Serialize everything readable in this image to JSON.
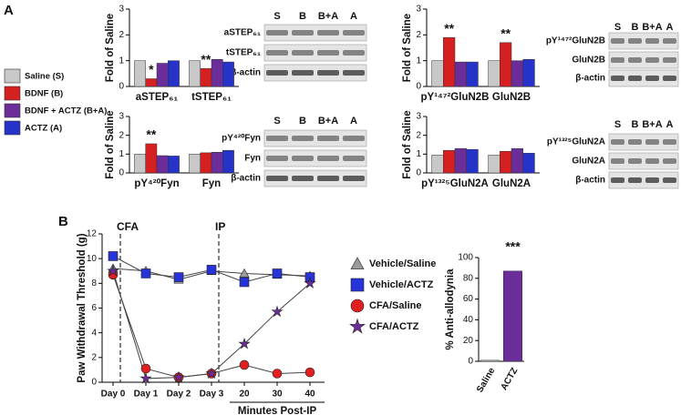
{
  "panels": [
    "A",
    "B"
  ],
  "blots": [
    {
      "lanes": [
        "S",
        "B",
        "B+A",
        "A"
      ],
      "rows": [
        "aSTEP₆₁",
        "tSTEP₆₁",
        "β-actin"
      ]
    },
    {
      "lanes": [
        "S",
        "B",
        "B+A",
        "A"
      ],
      "rows": [
        "pY⁴²⁰Fyn",
        "Fyn",
        "β-actin"
      ]
    },
    {
      "lanes": [
        "S",
        "B",
        "B+A",
        "A"
      ],
      "rows": [
        "pY¹⁴⁷²GluN2B",
        "GluN2B",
        "β-actin"
      ]
    },
    {
      "lanes": [
        "S",
        "B",
        "B+A",
        "A"
      ],
      "rows": [
        "pY¹³²⁵GluN2A",
        "GluN2A",
        "β-actin"
      ]
    }
  ],
  "chart_data": [
    {
      "type": "bar",
      "ylabel": "Fold of Saline",
      "categories": [
        "aSTEP₆₁",
        "tSTEP₆₁"
      ],
      "ylim": [
        0,
        3
      ],
      "yticks": [
        0,
        1,
        2,
        3
      ],
      "series": [
        {
          "name": "Saline (S)",
          "color": "#c8c8c8",
          "values": [
            1.0,
            1.0
          ]
        },
        {
          "name": "BDNF (B)",
          "color": "#d42020",
          "values": [
            0.3,
            0.7
          ]
        },
        {
          "name": "BDNF + ACTZ (B+A)",
          "color": "#6a2d9a",
          "values": [
            0.9,
            1.05
          ]
        },
        {
          "name": "ACTZ (A)",
          "color": "#2633c8",
          "values": [
            1.0,
            0.95
          ]
        }
      ],
      "annotations": [
        {
          "text": "*",
          "category": "aSTEP₆₁",
          "series": "BDNF (B)"
        },
        {
          "text": "**",
          "category": "tSTEP₆₁",
          "series": "BDNF (B)"
        }
      ]
    },
    {
      "type": "bar",
      "ylabel": "Fold of Saline",
      "categories": [
        "pY⁴²⁰Fyn",
        "Fyn"
      ],
      "ylim": [
        0,
        3
      ],
      "yticks": [
        0,
        1,
        2,
        3
      ],
      "series": [
        {
          "name": "Saline (S)",
          "color": "#c8c8c8",
          "values": [
            1.0,
            1.0
          ]
        },
        {
          "name": "BDNF (B)",
          "color": "#d42020",
          "values": [
            1.55,
            1.07
          ]
        },
        {
          "name": "BDNF + ACTZ (B+A)",
          "color": "#6a2d9a",
          "values": [
            0.92,
            1.1
          ]
        },
        {
          "name": "ACTZ (A)",
          "color": "#2633c8",
          "values": [
            0.9,
            1.2
          ]
        }
      ],
      "annotations": [
        {
          "text": "**",
          "category": "pY⁴²⁰Fyn",
          "series": "BDNF (B)"
        }
      ]
    },
    {
      "type": "bar",
      "ylabel": "Fold of Saline",
      "categories": [
        "pY¹⁴⁷²GluN2B",
        "GluN2B"
      ],
      "ylim": [
        0,
        3
      ],
      "yticks": [
        0,
        1,
        2,
        3
      ],
      "series": [
        {
          "name": "Saline (S)",
          "color": "#c8c8c8",
          "values": [
            1.0,
            1.0
          ]
        },
        {
          "name": "BDNF (B)",
          "color": "#d42020",
          "values": [
            1.9,
            1.7
          ]
        },
        {
          "name": "BDNF + ACTZ (B+A)",
          "color": "#6a2d9a",
          "values": [
            0.95,
            1.0
          ]
        },
        {
          "name": "ACTZ (A)",
          "color": "#2633c8",
          "values": [
            0.95,
            1.05
          ]
        }
      ],
      "annotations": [
        {
          "text": "**",
          "category": "pY¹⁴⁷²GluN2B",
          "series": "BDNF (B)"
        },
        {
          "text": "**",
          "category": "GluN2B",
          "series": "BDNF (B)"
        }
      ]
    },
    {
      "type": "bar",
      "ylabel": "Fold of Saline",
      "categories": [
        "pY¹³²⁵GluN2A",
        "GluN2A"
      ],
      "ylim": [
        0,
        3
      ],
      "yticks": [
        0,
        1,
        2,
        3
      ],
      "series": [
        {
          "name": "Saline (S)",
          "color": "#c8c8c8",
          "values": [
            0.95,
            0.95
          ]
        },
        {
          "name": "BDNF (B)",
          "color": "#d42020",
          "values": [
            1.2,
            1.15
          ]
        },
        {
          "name": "BDNF + ACTZ (B+A)",
          "color": "#6a2d9a",
          "values": [
            1.3,
            1.3
          ]
        },
        {
          "name": "ACTZ (A)",
          "color": "#2633c8",
          "values": [
            1.25,
            1.05
          ]
        }
      ],
      "annotations": []
    },
    {
      "type": "line",
      "ylabel": "Paw Withdrawal Threshold (g)",
      "xlabel": "Minutes Post-IP",
      "categories": [
        "Day 0",
        "Day 1",
        "Day 2",
        "Day 3",
        "20",
        "30",
        "40"
      ],
      "ylim": [
        0,
        12
      ],
      "yticks": [
        0,
        2,
        4,
        6,
        8,
        10,
        12
      ],
      "series": [
        {
          "name": "Vehicle/Saline",
          "color": "#9a9a9a",
          "marker": "triangle",
          "values": [
            9.2,
            9.0,
            8.3,
            9.0,
            8.8,
            8.7,
            8.6
          ]
        },
        {
          "name": "Vehicle/ACTZ",
          "color": "#2633d8",
          "marker": "square",
          "values": [
            10.2,
            8.8,
            8.5,
            9.1,
            8.1,
            8.8,
            8.5
          ]
        },
        {
          "name": "CFA/Saline",
          "color": "#e02020",
          "marker": "circle",
          "values": [
            8.7,
            1.1,
            0.4,
            0.7,
            1.4,
            0.7,
            0.8
          ]
        },
        {
          "name": "CFA/ACTZ",
          "color": "#6a2d9a",
          "marker": "star",
          "values": [
            9.0,
            0.3,
            0.4,
            0.7,
            3.1,
            5.7,
            8.0
          ]
        }
      ],
      "annotations": [
        {
          "text": "CFA",
          "category": "Day 0"
        },
        {
          "text": "IP",
          "category": "Day 3"
        }
      ]
    },
    {
      "type": "bar",
      "ylabel": "% Anti-allodynia",
      "categories": [
        "Saline",
        "ACTZ"
      ],
      "ylim": [
        0,
        100
      ],
      "yticks": [
        0,
        20,
        40,
        60,
        80,
        100
      ],
      "values": [
        1,
        87
      ],
      "colors": [
        "#c8c8c8",
        "#6a2d9a"
      ],
      "annotations": [
        {
          "text": "***",
          "category": "ACTZ"
        }
      ]
    }
  ]
}
